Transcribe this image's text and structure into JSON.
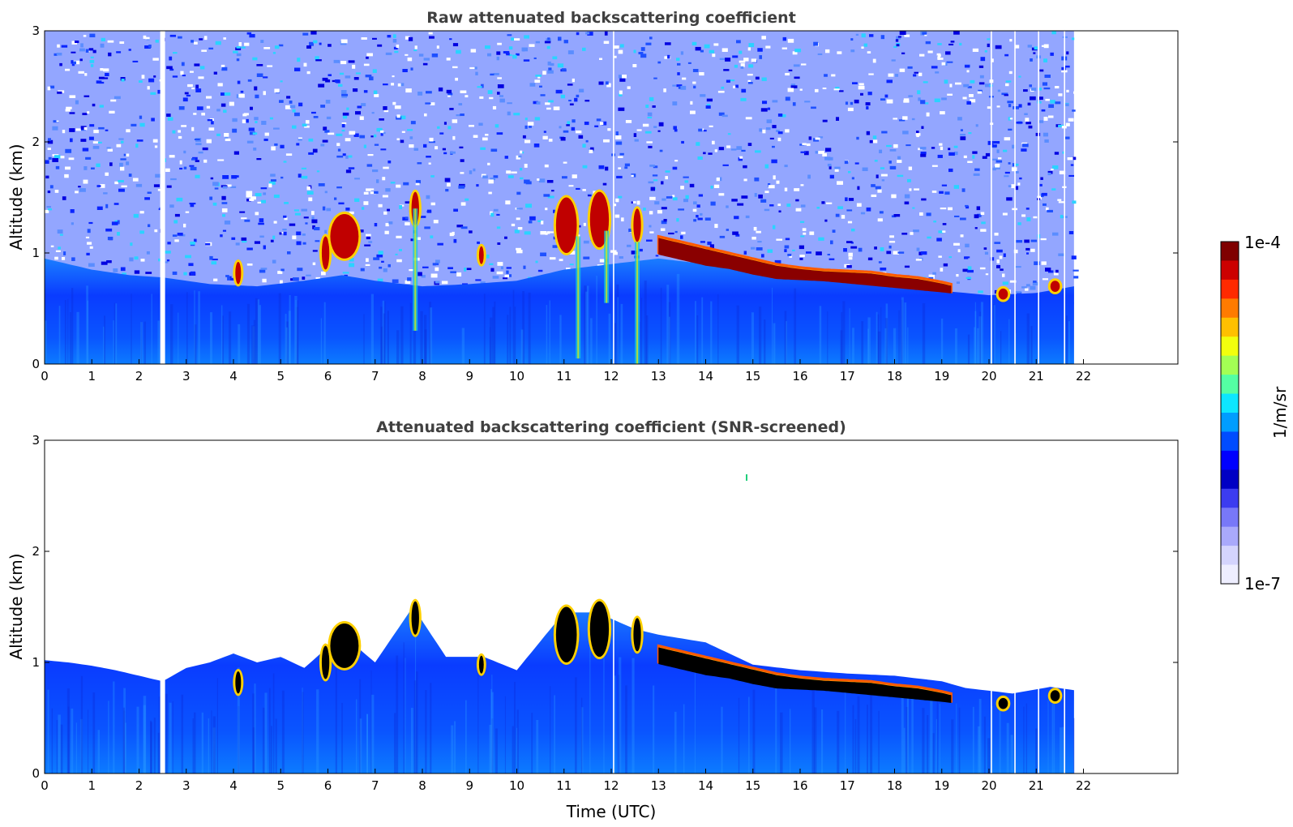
{
  "chart_data": [
    {
      "type": "heatmap",
      "title": "Raw attenuated backscattering coefficient",
      "xlabel": "",
      "ylabel": "Altitude (km)",
      "xlim": [
        0,
        24
      ],
      "ylim": [
        0,
        3
      ],
      "xticks": [
        0,
        1,
        2,
        3,
        4,
        5,
        6,
        7,
        8,
        9,
        10,
        11,
        12,
        13,
        14,
        15,
        16,
        17,
        18,
        19,
        20,
        21,
        22
      ],
      "yticks": [
        0,
        1,
        2,
        3
      ],
      "data_extent_hours": [
        0,
        21.8
      ],
      "colormap": "jet",
      "log_scale": true,
      "noise_reaches_top": true,
      "gaps_utc": [
        2.5,
        12.05,
        20.05,
        20.55,
        21.05,
        21.6
      ],
      "aerosol_layer_top": [
        [
          0,
          0.95
        ],
        [
          1,
          0.85
        ],
        [
          1.8,
          0.8
        ],
        [
          2.5,
          0.78
        ],
        [
          3.5,
          0.72
        ],
        [
          4.5,
          0.7
        ],
        [
          5.5,
          0.75
        ],
        [
          6.3,
          0.8
        ],
        [
          7,
          0.75
        ],
        [
          8,
          0.7
        ],
        [
          9,
          0.72
        ],
        [
          10,
          0.75
        ],
        [
          11,
          0.85
        ],
        [
          12,
          0.9
        ],
        [
          13,
          0.95
        ],
        [
          14,
          0.9
        ],
        [
          15,
          0.82
        ],
        [
          16,
          0.78
        ],
        [
          17,
          0.74
        ],
        [
          18,
          0.7
        ],
        [
          19,
          0.66
        ],
        [
          20,
          0.62
        ],
        [
          21,
          0.64
        ],
        [
          21.8,
          0.7
        ]
      ],
      "cloud_layer": [
        [
          13.0,
          1.15,
          1.0
        ],
        [
          13.5,
          1.1,
          0.95
        ],
        [
          14,
          1.05,
          0.9
        ],
        [
          14.5,
          1.0,
          0.87
        ],
        [
          15,
          0.95,
          0.82
        ],
        [
          15.5,
          0.9,
          0.78
        ],
        [
          16,
          0.87,
          0.77
        ],
        [
          16.5,
          0.85,
          0.76
        ],
        [
          17,
          0.84,
          0.74
        ],
        [
          17.5,
          0.83,
          0.72
        ],
        [
          18,
          0.8,
          0.7
        ],
        [
          18.5,
          0.78,
          0.68
        ],
        [
          19,
          0.74,
          0.66
        ],
        [
          19.2,
          0.72,
          0.65
        ]
      ],
      "cloud_patches": [
        [
          4.1,
          0.82,
          0.06,
          0.1
        ],
        [
          5.95,
          1.0,
          0.08,
          0.15
        ],
        [
          6.35,
          1.15,
          0.3,
          0.2
        ],
        [
          7.85,
          1.4,
          0.08,
          0.15
        ],
        [
          9.25,
          0.98,
          0.05,
          0.08
        ],
        [
          11.05,
          1.25,
          0.22,
          0.25
        ],
        [
          11.75,
          1.3,
          0.2,
          0.25
        ],
        [
          12.55,
          1.25,
          0.08,
          0.15
        ],
        [
          20.3,
          0.63,
          0.1,
          0.05
        ],
        [
          21.4,
          0.7,
          0.1,
          0.05
        ]
      ],
      "virga_columns": [
        [
          7.85,
          1.4,
          0.3
        ],
        [
          11.3,
          1.15,
          0.05
        ],
        [
          11.9,
          1.2,
          0.55
        ],
        [
          12.55,
          1.1,
          0.0
        ]
      ]
    },
    {
      "type": "heatmap",
      "title": "Attenuated backscattering coefficient (SNR-screened)",
      "xlabel": "Time (UTC)",
      "ylabel": "Altitude (km)",
      "xlim": [
        0,
        24
      ],
      "ylim": [
        0,
        3
      ],
      "xticks": [
        0,
        1,
        2,
        3,
        4,
        5,
        6,
        7,
        8,
        9,
        10,
        11,
        12,
        13,
        14,
        15,
        16,
        17,
        18,
        19,
        20,
        21,
        22
      ],
      "yticks": [
        0,
        1,
        2,
        3
      ],
      "data_extent_hours": [
        0,
        21.8
      ],
      "colormap": "jet",
      "log_scale": true,
      "saturated_color": "#000000",
      "screened_top": [
        [
          0,
          1.02
        ],
        [
          0.5,
          1.0
        ],
        [
          1,
          0.97
        ],
        [
          1.5,
          0.93
        ],
        [
          2,
          0.88
        ],
        [
          2.5,
          0.83
        ],
        [
          3,
          0.95
        ],
        [
          3.5,
          1.0
        ],
        [
          4,
          1.08
        ],
        [
          4.5,
          1.0
        ],
        [
          5,
          1.05
        ],
        [
          5.5,
          0.95
        ],
        [
          6.3,
          1.25
        ],
        [
          7,
          1.0
        ],
        [
          7.8,
          1.5
        ],
        [
          8.5,
          1.05
        ],
        [
          9.3,
          1.05
        ],
        [
          10,
          0.93
        ],
        [
          11,
          1.45
        ],
        [
          11.7,
          1.45
        ],
        [
          12.5,
          1.3
        ],
        [
          13,
          1.25
        ],
        [
          14,
          1.18
        ],
        [
          15,
          0.98
        ],
        [
          16,
          0.93
        ],
        [
          17,
          0.9
        ],
        [
          18,
          0.88
        ],
        [
          19,
          0.83
        ],
        [
          19.5,
          0.77
        ],
        [
          20.5,
          0.72
        ],
        [
          21.3,
          0.78
        ],
        [
          21.8,
          0.75
        ]
      ],
      "cloud_layer": [
        [
          13.0,
          1.15,
          1.0
        ],
        [
          13.5,
          1.1,
          0.95
        ],
        [
          14,
          1.05,
          0.9
        ],
        [
          14.5,
          1.0,
          0.87
        ],
        [
          15,
          0.95,
          0.82
        ],
        [
          15.5,
          0.9,
          0.78
        ],
        [
          16,
          0.87,
          0.77
        ],
        [
          16.5,
          0.85,
          0.76
        ],
        [
          17,
          0.84,
          0.74
        ],
        [
          17.5,
          0.83,
          0.72
        ],
        [
          18,
          0.8,
          0.7
        ],
        [
          18.5,
          0.78,
          0.68
        ],
        [
          19,
          0.74,
          0.66
        ],
        [
          19.2,
          0.72,
          0.65
        ]
      ],
      "cloud_patches": [
        [
          4.1,
          0.82,
          0.06,
          0.1
        ],
        [
          5.95,
          1.0,
          0.08,
          0.15
        ],
        [
          6.35,
          1.15,
          0.3,
          0.2
        ],
        [
          7.85,
          1.4,
          0.08,
          0.15
        ],
        [
          9.25,
          0.98,
          0.05,
          0.08
        ],
        [
          11.05,
          1.25,
          0.22,
          0.25
        ],
        [
          11.75,
          1.3,
          0.2,
          0.25
        ],
        [
          12.55,
          1.25,
          0.08,
          0.15
        ],
        [
          20.3,
          0.63,
          0.1,
          0.05
        ],
        [
          21.4,
          0.7,
          0.1,
          0.05
        ]
      ],
      "isolated_point": [
        14.85,
        2.65
      ]
    }
  ],
  "colorbar": {
    "label": "1/m/sr",
    "max_label": "1e-4",
    "min_label": "1e-7",
    "colors": [
      "#7f0000",
      "#cc0000",
      "#ff2a00",
      "#ff7b00",
      "#ffc000",
      "#f2ff0d",
      "#a3ff54",
      "#54ffa3",
      "#0de6ff",
      "#009dff",
      "#004cff",
      "#0000ff",
      "#0000c4",
      "#3c3cf0",
      "#7878f8",
      "#a9a9fb",
      "#d4d4fd",
      "#eeeeff"
    ]
  }
}
